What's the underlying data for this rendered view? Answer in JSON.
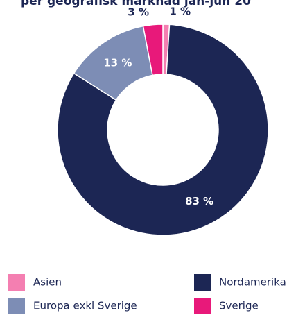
{
  "chart_data": {
    "type": "donut",
    "title": "per geografisk marknad jan-jun 20",
    "categories": [
      "Asien",
      "Nordamerika",
      "Europa exkl Sverige",
      "Sverige"
    ],
    "values": [
      1,
      83,
      13,
      3
    ],
    "value_labels": [
      "1 %",
      "83 %",
      "13 %",
      "3 %"
    ],
    "colors": [
      "#f47fb1",
      "#1c2654",
      "#7d8db5",
      "#e8197a"
    ]
  }
}
